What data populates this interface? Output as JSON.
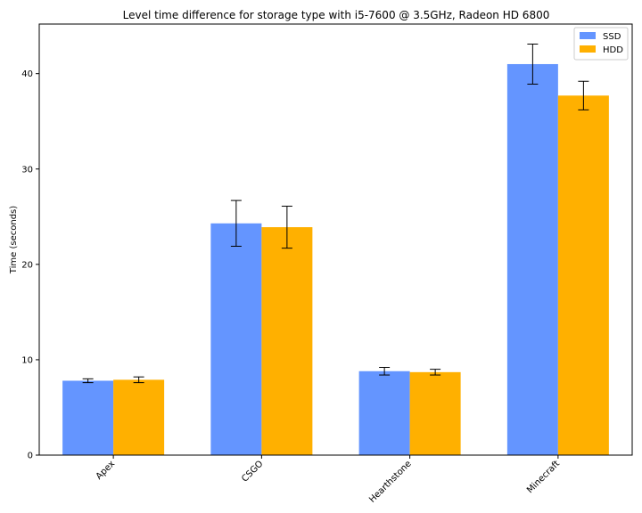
{
  "chart_data": {
    "type": "bar",
    "title": "Level time difference for storage type with i5-7600 @ 3.5GHz, Radeon HD 6800",
    "xlabel": "",
    "ylabel": "Time (seconds)",
    "categories": [
      "Apex",
      "CSGO",
      "Hearthstone",
      "Minecraft"
    ],
    "series": [
      {
        "name": "SSD",
        "color": "#6495ff",
        "values": [
          7.8,
          24.3,
          8.8,
          41.0
        ],
        "errors": [
          0.2,
          2.4,
          0.4,
          2.1
        ]
      },
      {
        "name": "HDD",
        "color": "#ffb000",
        "values": [
          7.9,
          23.9,
          8.7,
          37.7
        ],
        "errors": [
          0.3,
          2.2,
          0.3,
          1.5
        ]
      }
    ],
    "yticks": [
      0,
      10,
      20,
      30,
      40
    ],
    "ylim": [
      0,
      45.2
    ],
    "legend_position": "top-right",
    "grid": false
  }
}
